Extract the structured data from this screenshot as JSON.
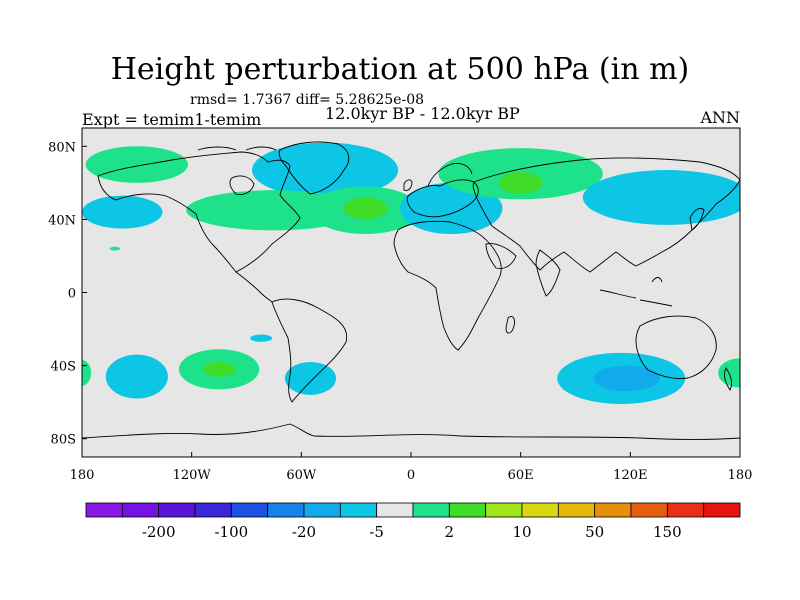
{
  "chart_data": {
    "type": "heatmap",
    "title": "Height perturbation at 500 hPa (in m)",
    "stats_text": "rmsd= 1.7367 diff= 5.28625e-08",
    "period_text": "12.0kyr BP - 12.0kyr BP",
    "expt_text": "Expt = temim1-temim",
    "season_text": "ANN",
    "projection": "cylindrical equidistant",
    "xlim": [
      -180,
      180
    ],
    "ylim": [
      -90,
      90
    ],
    "x_ticks": [
      {
        "value": -180,
        "label": "180"
      },
      {
        "value": -120,
        "label": "120W"
      },
      {
        "value": -60,
        "label": "60W"
      },
      {
        "value": 0,
        "label": "0"
      },
      {
        "value": 60,
        "label": "60E"
      },
      {
        "value": 120,
        "label": "120E"
      },
      {
        "value": 180,
        "label": "180"
      }
    ],
    "y_ticks": [
      {
        "value": 80,
        "label": "80N"
      },
      {
        "value": 40,
        "label": "40N"
      },
      {
        "value": 0,
        "label": "0"
      },
      {
        "value": -40,
        "label": "40S"
      },
      {
        "value": -80,
        "label": "80S"
      }
    ],
    "background_color": "#e6e6e6",
    "colorbar": {
      "colors": [
        "#8a17e6",
        "#7413e2",
        "#5b15d8",
        "#3b26d9",
        "#1b52e2",
        "#1683ea",
        "#11aaeb",
        "#0dc5e5",
        "#e6e6e6",
        "#1ee28a",
        "#3fdc28",
        "#a0e41c",
        "#d8d811",
        "#e5b90c",
        "#e78e0a",
        "#e85c12",
        "#e83018",
        "#e6140f"
      ],
      "labels": [
        {
          "label": "-200",
          "after_box": 1
        },
        {
          "label": "-100",
          "after_box": 3
        },
        {
          "label": "-20",
          "after_box": 5
        },
        {
          "label": "-5",
          "after_box": 7
        },
        {
          "label": "2",
          "after_box": 9
        },
        {
          "label": "10",
          "after_box": 11
        },
        {
          "label": "50",
          "after_box": 13
        },
        {
          "label": "150",
          "after_box": 15
        }
      ]
    },
    "anomaly_regions": [
      {
        "name": "north-atlantic-greenland-negative",
        "sign": "negative",
        "level": 1,
        "lon": -47,
        "lat": 67,
        "rx": 40,
        "ry": 15,
        "color": "#0dc5e5"
      },
      {
        "name": "east-pacific-north-positive",
        "sign": "positive",
        "level": 1,
        "lon": -150,
        "lat": 70,
        "rx": 28,
        "ry": 10,
        "color": "#1ee28a"
      },
      {
        "name": "north-pacific-negative",
        "sign": "negative",
        "level": 1,
        "lon": -158,
        "lat": 44,
        "rx": 22,
        "ry": 9,
        "color": "#0dc5e5"
      },
      {
        "name": "north-america-positive",
        "sign": "positive",
        "level": 1,
        "lon": -75,
        "lat": 45,
        "rx": 48,
        "ry": 11,
        "color": "#1ee28a"
      },
      {
        "name": "mid-atlantic-positive",
        "sign": "positive",
        "level": 1,
        "lon": -25,
        "lat": 45,
        "rx": 30,
        "ry": 13,
        "color": "#1ee28a"
      },
      {
        "name": "mid-atlantic-positive-core",
        "sign": "positive",
        "level": 2,
        "lon": -25,
        "lat": 46,
        "rx": 12,
        "ry": 6,
        "color": "#3fdc28"
      },
      {
        "name": "europe-negative",
        "sign": "negative",
        "level": 1,
        "lon": 22,
        "lat": 46,
        "rx": 28,
        "ry": 14,
        "color": "#0dc5e5"
      },
      {
        "name": "siberia-positive",
        "sign": "positive",
        "level": 1,
        "lon": 60,
        "lat": 65,
        "rx": 45,
        "ry": 14,
        "color": "#1ee28a"
      },
      {
        "name": "siberia-positive-core",
        "sign": "positive",
        "level": 2,
        "lon": 60,
        "lat": 60,
        "rx": 12,
        "ry": 6,
        "color": "#3fdc28"
      },
      {
        "name": "east-asia-negative",
        "sign": "negative",
        "level": 1,
        "lon": 140,
        "lat": 52,
        "rx": 46,
        "ry": 15,
        "color": "#0dc5e5"
      },
      {
        "name": "south-pacific-west-negative",
        "sign": "negative",
        "level": 1,
        "lon": -150,
        "lat": -46,
        "rx": 17,
        "ry": 12,
        "color": "#0dc5e5"
      },
      {
        "name": "south-pacific-positive",
        "sign": "positive",
        "level": 1,
        "lon": -105,
        "lat": -42,
        "rx": 22,
        "ry": 11,
        "color": "#1ee28a"
      },
      {
        "name": "south-pacific-positive-core",
        "sign": "positive",
        "level": 2,
        "lon": -105,
        "lat": -42,
        "rx": 9,
        "ry": 4,
        "color": "#3fdc28"
      },
      {
        "name": "chile-small-negative",
        "sign": "negative",
        "level": 1,
        "lon": -82,
        "lat": -25,
        "rx": 6,
        "ry": 2,
        "color": "#0dc5e5"
      },
      {
        "name": "drake-passage-negative",
        "sign": "negative",
        "level": 1,
        "lon": -55,
        "lat": -47,
        "rx": 14,
        "ry": 9,
        "color": "#0dc5e5"
      },
      {
        "name": "south-indian-ocean-negative",
        "sign": "negative",
        "level": 1,
        "lon": 115,
        "lat": -47,
        "rx": 35,
        "ry": 14,
        "color": "#0dc5e5"
      },
      {
        "name": "south-indian-ocean-negative-core",
        "sign": "negative",
        "level": 2,
        "lon": 118,
        "lat": -47,
        "rx": 18,
        "ry": 7,
        "color": "#11aaeb"
      },
      {
        "name": "east-south-pacific-positive",
        "sign": "positive",
        "level": 1,
        "lon": 180,
        "lat": -44,
        "rx": 12,
        "ry": 8,
        "color": "#1ee28a"
      },
      {
        "name": "west-south-pacific-positive",
        "sign": "positive",
        "level": 1,
        "lon": -180,
        "lat": -44,
        "rx": 5,
        "ry": 7,
        "color": "#1ee28a"
      },
      {
        "name": "tropical-pacific-small-positive",
        "sign": "positive",
        "level": 1,
        "lon": -162,
        "lat": 24,
        "rx": 3,
        "ry": 1,
        "color": "#1ee28a"
      }
    ]
  }
}
